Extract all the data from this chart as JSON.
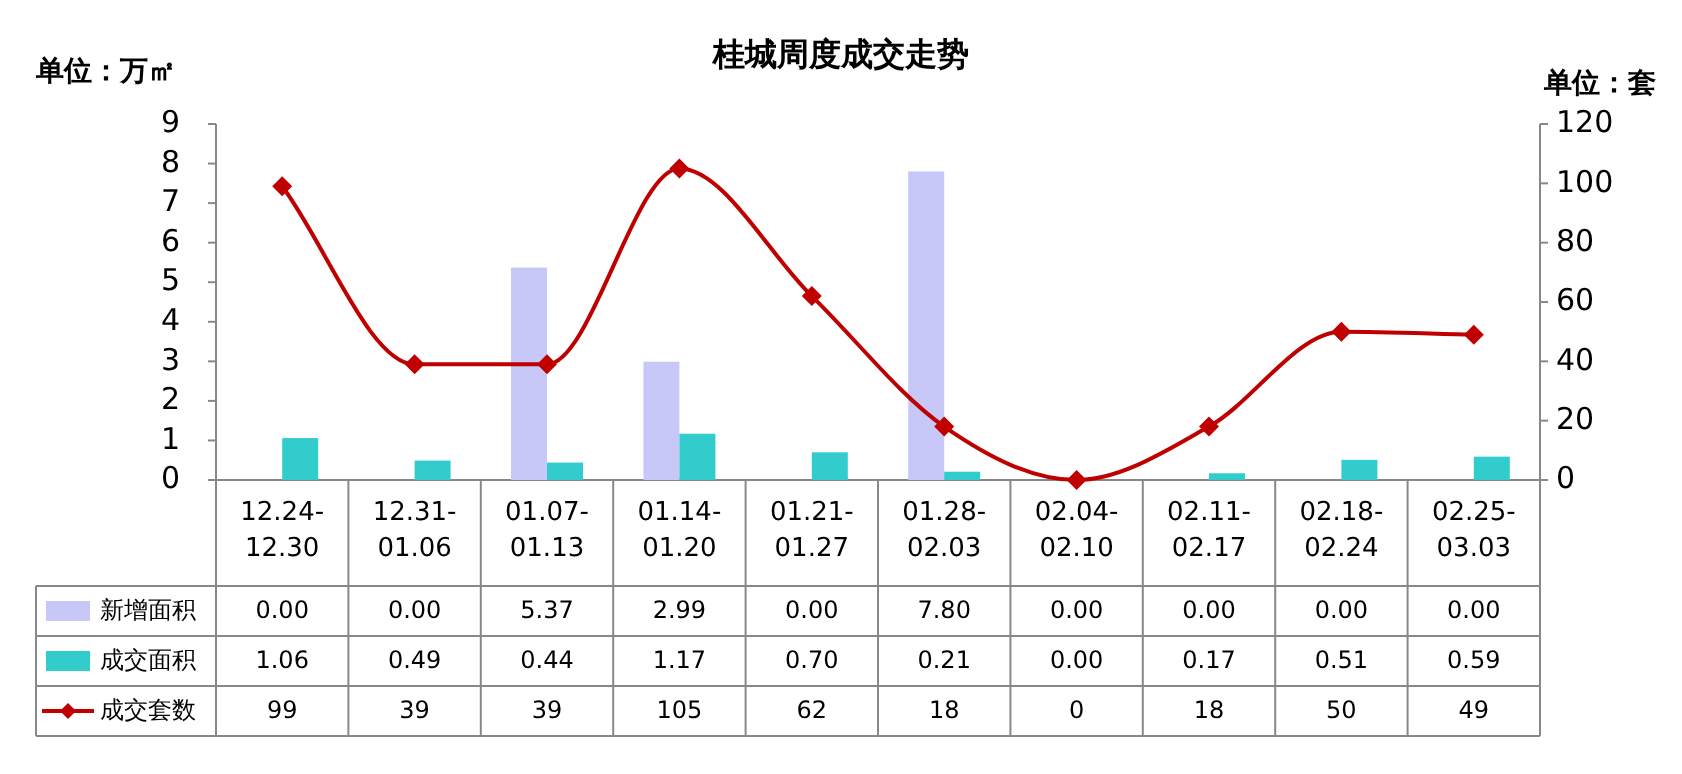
{
  "chart_data": {
    "type": "bar",
    "title": "桂城周度成交走势",
    "ylabel": "单位：万㎡",
    "y2label": "单位：套",
    "categories": [
      "12.24-12.30",
      "12.31-01.06",
      "01.07-01.13",
      "01.14-01.20",
      "01.21-01.27",
      "01.28-02.03",
      "02.04-02.10",
      "02.11-02.17",
      "02.18-02.24",
      "02.25-03.03"
    ],
    "series": [
      {
        "name": "新增面积",
        "color": "#c8c8f8",
        "values": [
          0.0,
          0.0,
          5.37,
          2.99,
          0.0,
          7.8,
          0.0,
          0.0,
          0.0,
          0.0
        ],
        "value_labels": [
          "0.00",
          "0.00",
          "5.37",
          "2.99",
          "0.00",
          "7.80",
          "0.00",
          "0.00",
          "0.00",
          "0.00"
        ]
      },
      {
        "name": "成交面积",
        "color": "#33cccc",
        "values": [
          1.06,
          0.49,
          0.44,
          1.17,
          0.7,
          0.21,
          0.0,
          0.17,
          0.51,
          0.59
        ],
        "value_labels": [
          "1.06",
          "0.49",
          "0.44",
          "1.17",
          "0.70",
          "0.21",
          "0.00",
          "0.17",
          "0.51",
          "0.59"
        ]
      },
      {
        "name": "成交套数",
        "type": "line",
        "axis": "y2",
        "color": "#c00000",
        "values": [
          99,
          39,
          39,
          105,
          62,
          18,
          0,
          18,
          50,
          49
        ],
        "value_labels": [
          "99",
          "39",
          "39",
          "105",
          "62",
          "18",
          "0",
          "18",
          "50",
          "49"
        ]
      }
    ],
    "ylim": [
      0,
      9
    ],
    "yticks": [
      0,
      1,
      2,
      3,
      4,
      5,
      6,
      7,
      8,
      9
    ],
    "y2lim": [
      0,
      120
    ],
    "y2ticks": [
      0,
      20,
      40,
      60,
      80,
      100,
      120
    ],
    "marker": "diamond",
    "line_style": "solid",
    "grid": false,
    "legend": "bottom left"
  }
}
